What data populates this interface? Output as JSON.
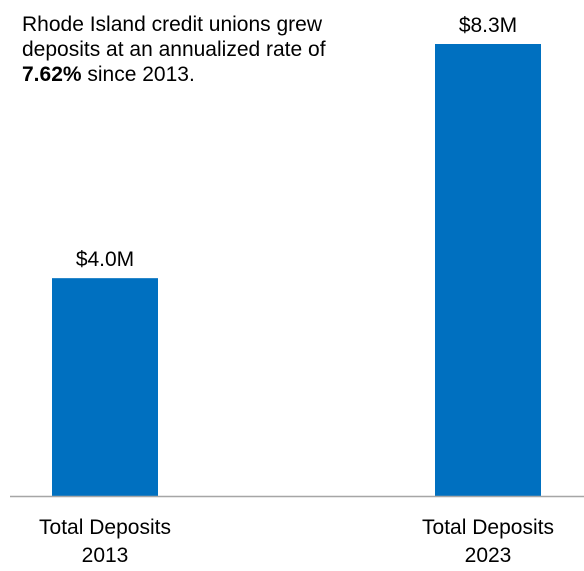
{
  "chart_data": {
    "type": "bar",
    "title": "",
    "xlabel": "",
    "ylabel": "",
    "categories": [
      [
        "Total Deposits",
        "2013"
      ],
      [
        "Total Deposits",
        "2023"
      ]
    ],
    "values": [
      4.0,
      8.3
    ],
    "value_unit": "$M",
    "data_labels": [
      "$4.0M",
      "$8.3M"
    ],
    "ylim": [
      0,
      8.3
    ],
    "grid": false,
    "legend": "none",
    "bar_color": "#0070C0",
    "axis_color": "#A6A6A6",
    "annotation": {
      "text_before": "Rhode Island credit unions grew deposits at an annualized rate of ",
      "emphasis": "7.62%",
      "text_after": " since 2013."
    }
  }
}
